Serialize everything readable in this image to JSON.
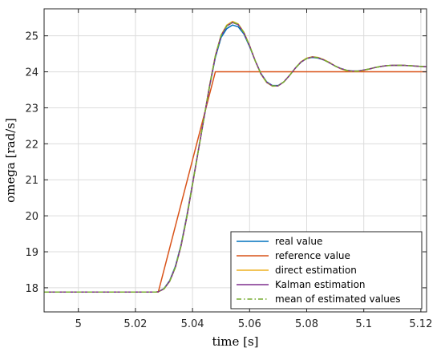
{
  "chart_data": {
    "type": "line",
    "xlabel": "time  [s]",
    "ylabel": "omega  [rad/s]",
    "xlim": [
      4.988,
      5.122
    ],
    "ylim": [
      17.33,
      25.75
    ],
    "xticks": [
      5,
      5.02,
      5.04,
      5.06,
      5.08,
      5.1,
      5.12
    ],
    "xtick_labels": [
      "5",
      "5.02",
      "5.04",
      "5.06",
      "5.08",
      "5.1",
      "5.12"
    ],
    "yticks": [
      18,
      19,
      20,
      21,
      22,
      23,
      24,
      25
    ],
    "ytick_labels": [
      "18",
      "19",
      "20",
      "21",
      "22",
      "23",
      "24",
      "25"
    ],
    "grid": true,
    "legend_position": "bottom-right",
    "series": [
      {
        "name": "real value",
        "color": "#0072bd",
        "style": "solid",
        "x": [
          4.988,
          5.0,
          5.01,
          5.02,
          5.027,
          5.028,
          5.03,
          5.032,
          5.034,
          5.036,
          5.038,
          5.04,
          5.042,
          5.044,
          5.046,
          5.048,
          5.05,
          5.052,
          5.054,
          5.056,
          5.058,
          5.06,
          5.062,
          5.064,
          5.066,
          5.068,
          5.07,
          5.072,
          5.074,
          5.076,
          5.078,
          5.08,
          5.082,
          5.084,
          5.086,
          5.088,
          5.09,
          5.092,
          5.094,
          5.096,
          5.098,
          5.1,
          5.102,
          5.104,
          5.106,
          5.108,
          5.11,
          5.112,
          5.114,
          5.116,
          5.118,
          5.12,
          5.122
        ],
        "y": [
          17.88,
          17.88,
          17.88,
          17.88,
          17.88,
          17.89,
          17.98,
          18.2,
          18.6,
          19.2,
          20.0,
          20.9,
          21.8,
          22.7,
          23.6,
          24.4,
          24.95,
          25.2,
          25.3,
          25.25,
          25.05,
          24.7,
          24.3,
          23.95,
          23.72,
          23.62,
          23.62,
          23.72,
          23.9,
          24.1,
          24.27,
          24.37,
          24.4,
          24.38,
          24.33,
          24.25,
          24.16,
          24.09,
          24.04,
          24.02,
          24.02,
          24.05,
          24.08,
          24.12,
          24.15,
          24.17,
          24.18,
          24.18,
          24.18,
          24.17,
          24.16,
          24.15,
          24.14
        ]
      },
      {
        "name": "reference value",
        "color": "#d95319",
        "style": "solid",
        "x": [
          4.988,
          5.028,
          5.048,
          5.122
        ],
        "y": [
          17.88,
          17.88,
          24.0,
          24.0
        ]
      },
      {
        "name": "direct estimation",
        "color": "#edb120",
        "style": "solid",
        "x": [
          4.988,
          5.0,
          5.01,
          5.02,
          5.027,
          5.028,
          5.03,
          5.032,
          5.034,
          5.036,
          5.038,
          5.04,
          5.042,
          5.044,
          5.046,
          5.048,
          5.05,
          5.052,
          5.054,
          5.056,
          5.058,
          5.06,
          5.062,
          5.064,
          5.066,
          5.068,
          5.07,
          5.072,
          5.074,
          5.076,
          5.078,
          5.08,
          5.082,
          5.084,
          5.086,
          5.088,
          5.09,
          5.092,
          5.094,
          5.096,
          5.098,
          5.1,
          5.102,
          5.104,
          5.106,
          5.108,
          5.11,
          5.112,
          5.114,
          5.116,
          5.118,
          5.12,
          5.122
        ],
        "y": [
          17.88,
          17.88,
          17.88,
          17.88,
          17.88,
          17.89,
          17.97,
          18.18,
          18.57,
          19.17,
          19.97,
          20.88,
          21.8,
          22.72,
          23.63,
          24.45,
          25.02,
          25.3,
          25.4,
          25.33,
          25.1,
          24.73,
          24.3,
          23.93,
          23.7,
          23.6,
          23.61,
          23.72,
          23.9,
          24.1,
          24.28,
          24.38,
          24.42,
          24.4,
          24.34,
          24.26,
          24.16,
          24.08,
          24.03,
          24.01,
          24.01,
          24.04,
          24.08,
          24.12,
          24.15,
          24.17,
          24.18,
          24.18,
          24.18,
          24.17,
          24.16,
          24.15,
          24.14
        ]
      },
      {
        "name": "Kalman estimation",
        "color": "#7e2f8e",
        "style": "solid",
        "x": [
          4.988,
          5.0,
          5.01,
          5.02,
          5.027,
          5.028,
          5.03,
          5.032,
          5.034,
          5.036,
          5.038,
          5.04,
          5.042,
          5.044,
          5.046,
          5.048,
          5.05,
          5.052,
          5.054,
          5.056,
          5.058,
          5.06,
          5.062,
          5.064,
          5.066,
          5.068,
          5.07,
          5.072,
          5.074,
          5.076,
          5.078,
          5.08,
          5.082,
          5.084,
          5.086,
          5.088,
          5.09,
          5.092,
          5.094,
          5.096,
          5.098,
          5.1,
          5.102,
          5.104,
          5.106,
          5.108,
          5.11,
          5.112,
          5.114,
          5.116,
          5.118,
          5.12,
          5.122
        ],
        "y": [
          17.88,
          17.88,
          17.88,
          17.88,
          17.88,
          17.89,
          17.97,
          18.18,
          18.57,
          19.17,
          19.96,
          20.87,
          21.79,
          22.71,
          23.62,
          24.43,
          25.0,
          25.27,
          25.37,
          25.31,
          25.08,
          24.72,
          24.3,
          23.94,
          23.71,
          23.61,
          23.61,
          23.72,
          23.9,
          24.1,
          24.27,
          24.37,
          24.41,
          24.39,
          24.33,
          24.25,
          24.16,
          24.09,
          24.04,
          24.02,
          24.02,
          24.05,
          24.08,
          24.12,
          24.15,
          24.17,
          24.18,
          24.18,
          24.18,
          24.17,
          24.16,
          24.15,
          24.14
        ]
      },
      {
        "name": "mean of estimated values",
        "color": "#77ac30",
        "style": "dashdot",
        "x": [
          4.988,
          5.0,
          5.01,
          5.02,
          5.027,
          5.028,
          5.03,
          5.032,
          5.034,
          5.036,
          5.038,
          5.04,
          5.042,
          5.044,
          5.046,
          5.048,
          5.05,
          5.052,
          5.054,
          5.056,
          5.058,
          5.06,
          5.062,
          5.064,
          5.066,
          5.068,
          5.07,
          5.072,
          5.074,
          5.076,
          5.078,
          5.08,
          5.082,
          5.084,
          5.086,
          5.088,
          5.09,
          5.092,
          5.094,
          5.096,
          5.098,
          5.1,
          5.102,
          5.104,
          5.106,
          5.108,
          5.11,
          5.112,
          5.114,
          5.116,
          5.118,
          5.12,
          5.122
        ],
        "y": [
          17.88,
          17.88,
          17.88,
          17.88,
          17.88,
          17.89,
          17.97,
          18.18,
          18.57,
          19.17,
          19.96,
          20.87,
          21.79,
          22.71,
          23.62,
          24.44,
          25.01,
          25.28,
          25.38,
          25.32,
          25.09,
          24.72,
          24.3,
          23.94,
          23.71,
          23.61,
          23.61,
          23.72,
          23.9,
          24.1,
          24.27,
          24.37,
          24.41,
          24.39,
          24.33,
          24.25,
          24.16,
          24.09,
          24.04,
          24.02,
          24.02,
          24.05,
          24.08,
          24.12,
          24.15,
          24.17,
          24.18,
          24.18,
          24.18,
          24.17,
          24.16,
          24.15,
          24.14
        ]
      }
    ]
  }
}
